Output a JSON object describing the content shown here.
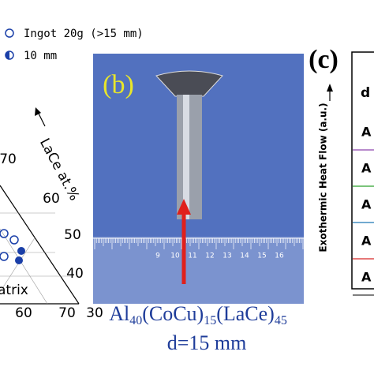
{
  "legend": {
    "items": [
      "Ingot 20g (>15 mm)",
      "10 mm"
    ]
  },
  "ternary": {
    "axis_label": "LaCe at.%",
    "right_ticks": [
      "70",
      "60",
      "50",
      "40",
      "30"
    ],
    "bottom_ticks": [
      "60",
      "70"
    ],
    "region_label": "atrix"
  },
  "panel_b": {
    "label": "(b)",
    "ruler_numbers": [
      "9",
      "10",
      "11",
      "12",
      "13",
      "14",
      "15",
      "16"
    ],
    "formula": {
      "el1": "Al",
      "sub1": "40",
      "el2": "(CoCu)",
      "sub2": "15",
      "el3": "(LaCe)",
      "sub3": "45"
    },
    "diameter": "d=15 mm"
  },
  "panel_c": {
    "label": "(c)",
    "y_axis_label": "Exothermic Heat Flow (a.u.)",
    "header": "d",
    "rows": [
      "A",
      "A",
      "A",
      "A",
      "A"
    ]
  }
}
